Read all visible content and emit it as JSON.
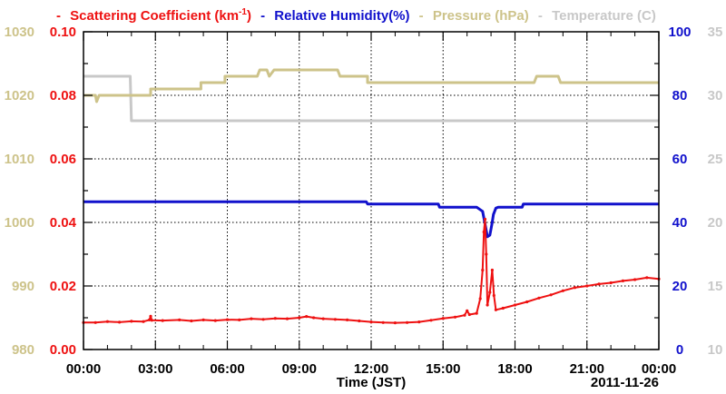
{
  "chart_data": {
    "type": "line",
    "legend": [
      {
        "key": "scat",
        "name_pre": "Scattering Coefficient (km",
        "name_sup": "-1",
        "name_post": ")",
        "color": "#ee1111"
      },
      {
        "key": "rh",
        "name": "Relative Humidity(%)",
        "color": "#1111cc"
      },
      {
        "key": "pres",
        "name": "Pressure (hPa)",
        "color": "#cdc38a"
      },
      {
        "key": "temp",
        "name": "Temperature (C)",
        "color": "#c8c8c8"
      }
    ],
    "legend_dash": "-",
    "xlabel": "Time (JST)",
    "date_label": "2011-11-26",
    "x_range": [
      0,
      24
    ],
    "x_ticks": [
      {
        "v": 0,
        "label": "00:00"
      },
      {
        "v": 3,
        "label": "03:00"
      },
      {
        "v": 6,
        "label": "06:00"
      },
      {
        "v": 9,
        "label": "09:00"
      },
      {
        "v": 12,
        "label": "12:00"
      },
      {
        "v": 15,
        "label": "15:00"
      },
      {
        "v": 18,
        "label": "18:00"
      },
      {
        "v": 21,
        "label": "21:00"
      },
      {
        "v": 24,
        "label": "00:00"
      }
    ],
    "axes": {
      "pressure": {
        "range": [
          980,
          1030
        ],
        "ticks": [
          "980",
          "990",
          "1000",
          "1010",
          "1020",
          "1030"
        ],
        "color": "#cdc38a"
      },
      "scattering": {
        "range": [
          0,
          0.1
        ],
        "ticks": [
          "0.00",
          "0.02",
          "0.04",
          "0.06",
          "0.08",
          "0.10"
        ],
        "color": "#ee1111"
      },
      "humidity": {
        "range": [
          0,
          100
        ],
        "ticks": [
          "0",
          "20",
          "40",
          "60",
          "80",
          "100"
        ],
        "color": "#1111cc"
      },
      "temperature": {
        "range": [
          10,
          35
        ],
        "ticks": [
          "10",
          "15",
          "20",
          "25",
          "30",
          "35"
        ],
        "color": "#c8c8c8"
      }
    },
    "grid": true,
    "series": {
      "pressure": [
        [
          0,
          1020
        ],
        [
          0.5,
          1020
        ],
        [
          0.55,
          1019
        ],
        [
          0.65,
          1020
        ],
        [
          2.8,
          1020
        ],
        [
          2.8,
          1021
        ],
        [
          4.9,
          1021
        ],
        [
          4.9,
          1022
        ],
        [
          5.9,
          1022
        ],
        [
          5.9,
          1023
        ],
        [
          7.25,
          1023
        ],
        [
          7.35,
          1024
        ],
        [
          7.65,
          1024
        ],
        [
          7.75,
          1023
        ],
        [
          7.95,
          1024
        ],
        [
          10.6,
          1024
        ],
        [
          10.7,
          1023
        ],
        [
          11.85,
          1023
        ],
        [
          11.85,
          1022
        ],
        [
          18.8,
          1022
        ],
        [
          18.9,
          1023
        ],
        [
          19.8,
          1023
        ],
        [
          19.9,
          1022
        ],
        [
          24,
          1022
        ]
      ],
      "humidity": [
        [
          0,
          46.5
        ],
        [
          11.8,
          46.5
        ],
        [
          11.85,
          45.8
        ],
        [
          14.8,
          45.8
        ],
        [
          14.85,
          44.8
        ],
        [
          16.0,
          44.8
        ],
        [
          16.4,
          44.8
        ],
        [
          16.65,
          43.5
        ],
        [
          16.75,
          39.5
        ],
        [
          16.85,
          35.5
        ],
        [
          16.95,
          36.0
        ],
        [
          17.05,
          40.0
        ],
        [
          17.1,
          42.5
        ],
        [
          17.2,
          44.5
        ],
        [
          17.3,
          44.8
        ],
        [
          18.3,
          44.8
        ],
        [
          18.35,
          45.8
        ],
        [
          24,
          45.8
        ]
      ],
      "temperature": [
        [
          0,
          31.5
        ],
        [
          1.95,
          31.5
        ],
        [
          2.0,
          28.0
        ],
        [
          24,
          28.0
        ]
      ],
      "scattering": [
        [
          0,
          0.0085
        ],
        [
          0.5,
          0.0085
        ],
        [
          1.0,
          0.0088
        ],
        [
          1.5,
          0.0086
        ],
        [
          2.0,
          0.0089
        ],
        [
          2.5,
          0.0088
        ],
        [
          2.75,
          0.0093
        ],
        [
          2.8,
          0.0105
        ],
        [
          2.85,
          0.0092
        ],
        [
          3.3,
          0.0091
        ],
        [
          4.0,
          0.0093
        ],
        [
          4.5,
          0.009
        ],
        [
          5.0,
          0.0093
        ],
        [
          5.5,
          0.0091
        ],
        [
          6.0,
          0.0094
        ],
        [
          6.5,
          0.0093
        ],
        [
          7.0,
          0.0097
        ],
        [
          7.5,
          0.0095
        ],
        [
          8.0,
          0.0098
        ],
        [
          8.5,
          0.0097
        ],
        [
          9.0,
          0.01
        ],
        [
          9.3,
          0.0104
        ],
        [
          9.6,
          0.01
        ],
        [
          10.0,
          0.0097
        ],
        [
          10.5,
          0.0095
        ],
        [
          11.0,
          0.0093
        ],
        [
          11.5,
          0.009
        ],
        [
          12.0,
          0.0087
        ],
        [
          12.5,
          0.0085
        ],
        [
          13.0,
          0.0084
        ],
        [
          13.5,
          0.0085
        ],
        [
          14.0,
          0.0087
        ],
        [
          14.5,
          0.0092
        ],
        [
          15.0,
          0.0098
        ],
        [
          15.5,
          0.0102
        ],
        [
          15.9,
          0.0108
        ],
        [
          16.0,
          0.0122
        ],
        [
          16.1,
          0.011
        ],
        [
          16.4,
          0.0114
        ],
        [
          16.55,
          0.016
        ],
        [
          16.65,
          0.025
        ],
        [
          16.7,
          0.037
        ],
        [
          16.75,
          0.041
        ],
        [
          16.8,
          0.03
        ],
        [
          16.85,
          0.014
        ],
        [
          16.95,
          0.018
        ],
        [
          17.05,
          0.025
        ],
        [
          17.12,
          0.017
        ],
        [
          17.2,
          0.0125
        ],
        [
          17.5,
          0.013
        ],
        [
          18.0,
          0.014
        ],
        [
          18.5,
          0.015
        ],
        [
          19.0,
          0.0162
        ],
        [
          19.5,
          0.0172
        ],
        [
          20.0,
          0.0185
        ],
        [
          20.5,
          0.0195
        ],
        [
          21.0,
          0.02
        ],
        [
          21.5,
          0.0206
        ],
        [
          22.0,
          0.021
        ],
        [
          22.5,
          0.0216
        ],
        [
          23.0,
          0.022
        ],
        [
          23.5,
          0.0226
        ],
        [
          24.0,
          0.0222
        ]
      ]
    }
  }
}
